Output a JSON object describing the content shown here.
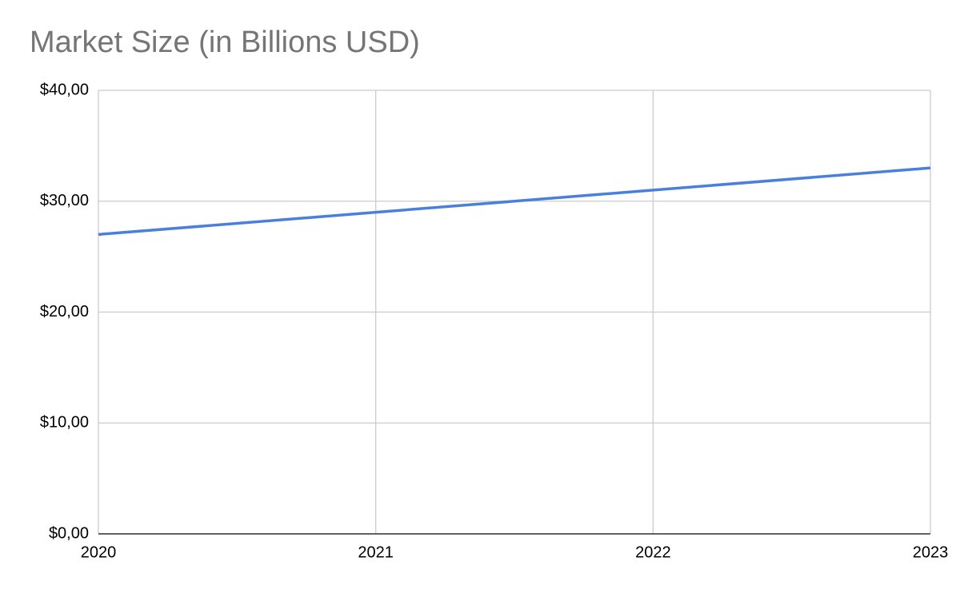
{
  "chart_data": {
    "type": "line",
    "title": "Market Size (in Billions USD)",
    "x": [
      2020,
      2021,
      2022,
      2023
    ],
    "values": [
      27,
      29,
      31,
      33
    ],
    "color": "#4a80dc",
    "xlim": [
      2020,
      2023
    ],
    "xticks": [
      2020,
      2021,
      2022,
      2023
    ],
    "ylim": [
      0,
      40
    ],
    "yticks": [
      {
        "value": 0,
        "label": "$0,00"
      },
      {
        "value": 10,
        "label": "$10,00"
      },
      {
        "value": 20,
        "label": "$20,00"
      },
      {
        "value": 30,
        "label": "$30,00"
      },
      {
        "value": 40,
        "label": "$40,00"
      }
    ],
    "grid": true
  }
}
